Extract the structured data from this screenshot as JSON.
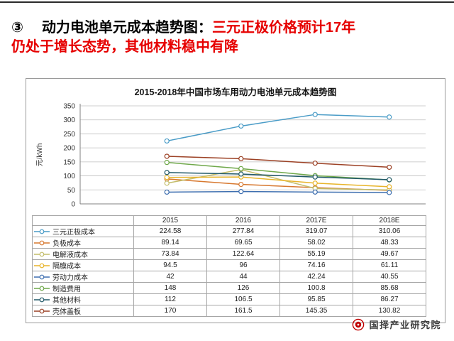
{
  "slide": {
    "bullet": "③",
    "title_black": "动力电池单元成本趋势图：",
    "title_red_line1": "三元正极价格预计17年",
    "title_red_line2": "仍处于增长态势，其他材料稳中有降",
    "title_red_color": "#e60000"
  },
  "footer": {
    "brand": "国择产业研究院",
    "logo_color": "#c00000"
  },
  "chart_data": {
    "type": "line",
    "title": "2015-2018年中国市场车用动力电池单元成本趋势图",
    "xlabel": "",
    "ylabel": "元/kWh",
    "ylim": [
      0,
      350
    ],
    "ytick_step": 50,
    "grid": true,
    "legend_position": "table-below",
    "categories": [
      "2015",
      "2016",
      "2017E",
      "2018E"
    ],
    "series": [
      {
        "name": "三元正极成本",
        "values": [
          224.58,
          277.84,
          319.07,
          310.06
        ],
        "color": "#4a9cc7"
      },
      {
        "name": "负极成本",
        "values": [
          89.14,
          69.65,
          58.02,
          48.33
        ],
        "color": "#d7782f"
      },
      {
        "name": "电解液成本",
        "values": [
          73.84,
          122.64,
          55.19,
          49.67
        ],
        "color": "#c3bd6a"
      },
      {
        "name": "隔膜成本",
        "values": [
          94.5,
          96,
          74.16,
          61.11
        ],
        "color": "#e8b42a"
      },
      {
        "name": "劳动力成本",
        "values": [
          42,
          44,
          42.24,
          40.55
        ],
        "color": "#3e6fb0"
      },
      {
        "name": "制造费用",
        "values": [
          148,
          126,
          100.8,
          85.68
        ],
        "color": "#6fa84a"
      },
      {
        "name": "其他材料",
        "values": [
          112,
          106.5,
          95.85,
          86.27
        ],
        "color": "#215968"
      },
      {
        "name": "壳体盖板",
        "values": [
          170,
          161.5,
          145.35,
          130.82
        ],
        "color": "#9c4125"
      }
    ]
  }
}
